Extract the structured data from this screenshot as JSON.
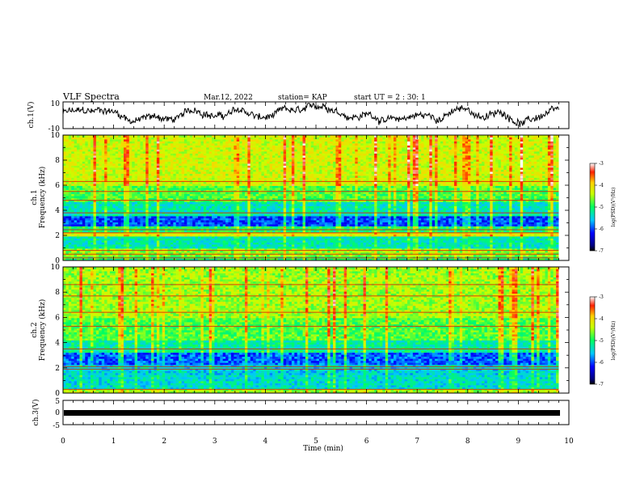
{
  "header": {
    "title": "VLF Spectra",
    "date": "Mar.12, 2022",
    "station": "station= KAP",
    "start": "start  UT =   2 : 30: 1"
  },
  "chart_data": [
    {
      "type": "line",
      "panel": "ch1-waveform",
      "ylabel": "ch.1(V)",
      "ylim": [
        -10,
        10
      ],
      "yticks": [
        "10",
        "-10"
      ],
      "xlim": [
        0,
        10
      ],
      "note": "noisy voltage trace oscillating roughly between -7 and +7 V"
    },
    {
      "type": "heatmap",
      "panel": "ch1-spectrogram",
      "ylabel": "ch.1\nFrequency (kHz)",
      "ylim": [
        0,
        10
      ],
      "yticks": [
        "0",
        "2",
        "4",
        "6",
        "8",
        "10"
      ],
      "xlim": [
        0,
        9.8
      ],
      "colorbar": {
        "label": "log(PSD)(V²/Hz)",
        "ticks": [
          "-3",
          "-4",
          "-5",
          "-6",
          "-7"
        ],
        "range": [
          -7,
          -3
        ]
      },
      "bands": [
        {
          "f": [
            0,
            0.3
          ],
          "level": -5.0
        },
        {
          "f": [
            0.3,
            1.0
          ],
          "level": -4.6
        },
        {
          "f": [
            1.0,
            2.0
          ],
          "level": -5.3
        },
        {
          "f": [
            2.0,
            2.3
          ],
          "level": -4.2
        },
        {
          "f": [
            2.3,
            2.8
          ],
          "level": -5.0
        },
        {
          "f": [
            2.8,
            3.5
          ],
          "level": -6.0
        },
        {
          "f": [
            3.5,
            4.7
          ],
          "level": -5.3
        },
        {
          "f": [
            4.7,
            6.0
          ],
          "level": -4.8
        },
        {
          "f": [
            6.0,
            10.0
          ],
          "level": -4.3
        }
      ],
      "lines_khz": [
        0.2,
        0.5,
        0.8,
        2.2,
        2.45,
        3.8,
        4.8,
        5.5,
        6.3
      ]
    },
    {
      "type": "heatmap",
      "panel": "ch2-spectrogram",
      "ylabel": "ch.2\nFrequency (kHz)",
      "ylim": [
        0,
        10
      ],
      "yticks": [
        "0",
        "2",
        "4",
        "6",
        "8",
        "10"
      ],
      "xlim": [
        0,
        9.8
      ],
      "colorbar": {
        "label": "log(PSD)(V²/Hz)",
        "ticks": [
          "-3",
          "-4",
          "-5",
          "-6",
          "-7"
        ],
        "range": [
          -7,
          -3
        ]
      },
      "bands": [
        {
          "f": [
            0,
            0.3
          ],
          "level": -4.5
        },
        {
          "f": [
            0.3,
            1.5
          ],
          "level": -5.4
        },
        {
          "f": [
            1.5,
            2.2
          ],
          "level": -5.5
        },
        {
          "f": [
            2.2,
            3.3
          ],
          "level": -5.9
        },
        {
          "f": [
            3.3,
            4.2
          ],
          "level": -5.2
        },
        {
          "f": [
            4.2,
            6.0
          ],
          "level": -4.8
        },
        {
          "f": [
            6.0,
            10.0
          ],
          "level": -4.5
        }
      ],
      "lines_khz": [
        0.3,
        1.9,
        2.1,
        3.5,
        5.3,
        6.4,
        7.7,
        8.6
      ]
    },
    {
      "type": "line",
      "panel": "ch3-waveform",
      "ylabel": "ch.3(V)",
      "ylim": [
        -5,
        5
      ],
      "yticks": [
        "5",
        "0",
        "-5"
      ],
      "xlim": [
        0,
        10
      ],
      "xlabel": "Time (min)",
      "xticks": [
        "0",
        "1",
        "2",
        "3",
        "4",
        "5",
        "6",
        "7",
        "8",
        "9",
        "10"
      ],
      "note": "thick flat band near -1 V from 0 to 9.8 min"
    }
  ]
}
